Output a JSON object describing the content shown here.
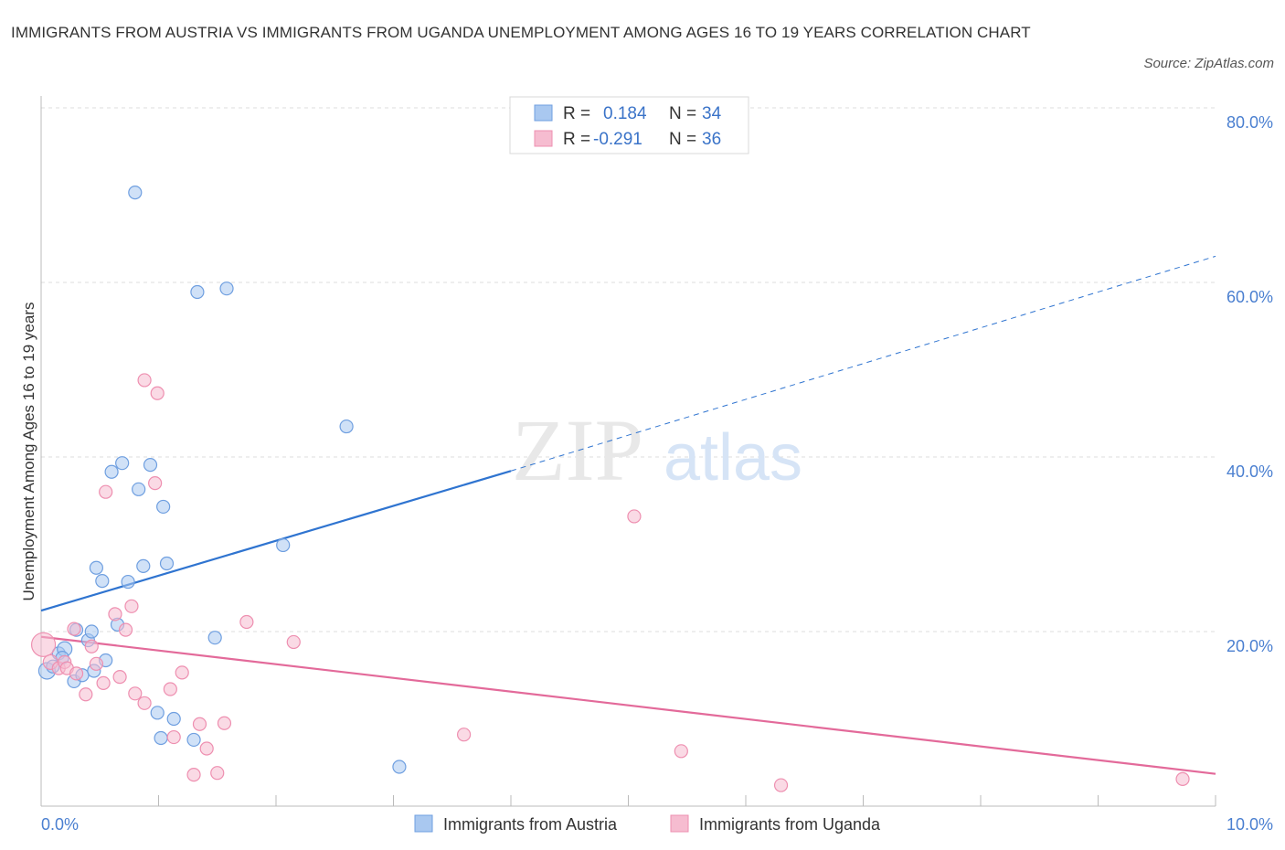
{
  "title": "IMMIGRANTS FROM AUSTRIA VS IMMIGRANTS FROM UGANDA UNEMPLOYMENT AMONG AGES 16 TO 19 YEARS CORRELATION CHART",
  "source": "Source: ZipAtlas.com",
  "watermark": {
    "zip": "ZIP",
    "atlas": "atlas"
  },
  "colors": {
    "austria_fill": "#a9c8f0",
    "austria_stroke": "#6f9fe0",
    "austria_line": "#2f74d0",
    "uganda_fill": "#f6bcd0",
    "uganda_stroke": "#ee8fb0",
    "uganda_line": "#e36a9a",
    "tick_text": "#4a7fd0",
    "grid": "#dddddd"
  },
  "legend": {
    "rows": [
      {
        "r_label": "R = ",
        "r_value": "0.184",
        "n_label": "N = ",
        "n_value": "34"
      },
      {
        "r_label": "R = ",
        "r_value": "-0.291",
        "n_label": "N = ",
        "n_value": "36"
      }
    ]
  },
  "chart_data": {
    "type": "scatter",
    "title": "IMMIGRANTS FROM AUSTRIA VS IMMIGRANTS FROM UGANDA UNEMPLOYMENT AMONG AGES 16 TO 19 YEARS CORRELATION CHART",
    "xlabel": "",
    "ylabel": "Unemployment Among Ages 16 to 19 years",
    "xlim": [
      0,
      10
    ],
    "ylim": [
      0,
      80
    ],
    "x_tick_labels": [
      "0.0%",
      "10.0%"
    ],
    "y_ticks": [
      20,
      40,
      60,
      80
    ],
    "y_tick_labels": [
      "20.0%",
      "40.0%",
      "60.0%",
      "80.0%"
    ],
    "grid": true,
    "legend_position": "top-center",
    "series": [
      {
        "name": "Immigrants from Austria",
        "r": 0.184,
        "n": 34,
        "trend": {
          "x0": 0,
          "y0": 22.4,
          "x1": 4.0,
          "y1": 38.4,
          "dashed_to_x": 10,
          "dashed_to_y": 63.0
        },
        "points": [
          [
            0.05,
            15.5,
            9
          ],
          [
            0.1,
            16.0,
            7
          ],
          [
            0.15,
            17.5,
            7
          ],
          [
            0.2,
            18.0,
            8
          ],
          [
            0.28,
            14.3,
            7
          ],
          [
            0.3,
            20.2,
            7
          ],
          [
            0.35,
            15.0,
            7
          ],
          [
            0.4,
            19.0,
            7
          ],
          [
            0.45,
            15.5,
            7
          ],
          [
            0.43,
            20.0,
            7
          ],
          [
            0.55,
            16.7,
            7
          ],
          [
            0.47,
            27.3,
            7
          ],
          [
            0.52,
            25.8,
            7
          ],
          [
            0.6,
            38.3,
            7
          ],
          [
            0.65,
            20.8,
            7
          ],
          [
            0.69,
            39.3,
            7
          ],
          [
            0.74,
            25.7,
            7
          ],
          [
            0.8,
            70.3,
            7
          ],
          [
            0.83,
            36.3,
            7
          ],
          [
            0.87,
            27.5,
            7
          ],
          [
            0.93,
            39.1,
            7
          ],
          [
            0.99,
            10.7,
            7
          ],
          [
            1.02,
            7.8,
            7
          ],
          [
            1.04,
            34.3,
            7
          ],
          [
            1.07,
            27.8,
            7
          ],
          [
            1.13,
            10.0,
            7
          ],
          [
            1.3,
            7.6,
            7
          ],
          [
            1.33,
            58.9,
            7
          ],
          [
            1.48,
            19.3,
            7
          ],
          [
            1.58,
            59.3,
            7
          ],
          [
            2.06,
            29.9,
            7
          ],
          [
            2.6,
            43.5,
            7
          ],
          [
            3.05,
            4.5,
            7
          ],
          [
            0.18,
            17.0,
            7
          ]
        ]
      },
      {
        "name": "Immigrants from Uganda",
        "r": -0.291,
        "n": 36,
        "trend": {
          "x0": 0,
          "y0": 19.4,
          "x1": 10,
          "y1": 3.7
        },
        "points": [
          [
            0.02,
            18.5,
            13
          ],
          [
            0.08,
            16.5,
            8
          ],
          [
            0.15,
            15.8,
            7
          ],
          [
            0.2,
            16.5,
            7
          ],
          [
            0.22,
            15.8,
            7
          ],
          [
            0.28,
            20.3,
            7
          ],
          [
            0.38,
            12.8,
            7
          ],
          [
            0.43,
            18.3,
            7
          ],
          [
            0.47,
            16.3,
            7
          ],
          [
            0.53,
            14.1,
            7
          ],
          [
            0.55,
            36.0,
            7
          ],
          [
            0.63,
            22.0,
            7
          ],
          [
            0.67,
            14.8,
            7
          ],
          [
            0.72,
            20.2,
            7
          ],
          [
            0.77,
            22.9,
            7
          ],
          [
            0.8,
            12.9,
            7
          ],
          [
            0.88,
            11.8,
            7
          ],
          [
            0.88,
            48.8,
            7
          ],
          [
            0.97,
            37.0,
            7
          ],
          [
            0.99,
            47.3,
            7
          ],
          [
            1.1,
            13.4,
            7
          ],
          [
            1.13,
            7.9,
            7
          ],
          [
            1.2,
            15.3,
            7
          ],
          [
            1.3,
            3.6,
            7
          ],
          [
            1.35,
            9.4,
            7
          ],
          [
            1.41,
            6.6,
            7
          ],
          [
            1.5,
            3.8,
            7
          ],
          [
            1.56,
            9.5,
            7
          ],
          [
            1.75,
            21.1,
            7
          ],
          [
            2.15,
            18.8,
            7
          ],
          [
            3.6,
            8.2,
            7
          ],
          [
            5.05,
            33.2,
            7
          ],
          [
            5.45,
            6.3,
            7
          ],
          [
            6.3,
            2.4,
            7
          ],
          [
            9.72,
            3.1,
            7
          ],
          [
            0.3,
            15.2,
            7
          ]
        ]
      }
    ]
  }
}
